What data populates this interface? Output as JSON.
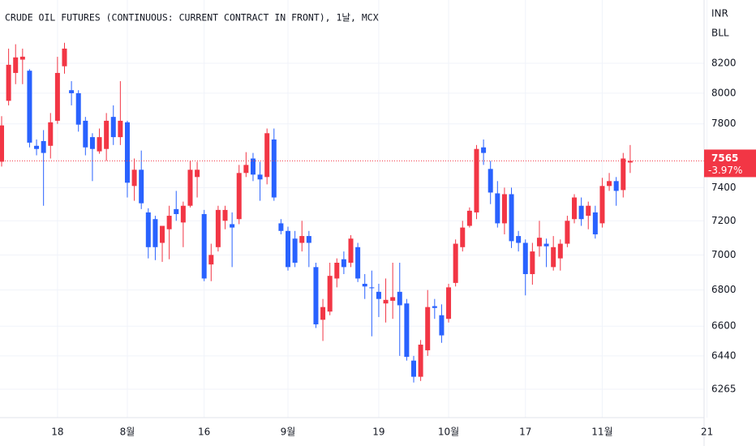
{
  "chart_data": {
    "type": "candlestick",
    "title": "CRUDE OIL FUTURES (CONTINUOUS: CURRENT CONTRACT IN FRONT), 1날, MCX",
    "units": [
      "INR",
      "BLL"
    ],
    "categories": [
      null,
      null,
      null,
      null,
      null,
      null,
      null,
      null,
      "18",
      null,
      null,
      null,
      null,
      null,
      null,
      null,
      null,
      null,
      "8월",
      null,
      null,
      null,
      null,
      null,
      null,
      null,
      null,
      null,
      null,
      "16",
      null,
      null,
      null,
      null,
      null,
      null,
      null,
      null,
      null,
      null,
      null,
      "9월",
      null,
      null,
      null,
      null,
      null,
      null,
      null,
      null,
      null,
      null,
      null,
      null,
      "19",
      null,
      null,
      null,
      null,
      null,
      null,
      null,
      null,
      null,
      "10월",
      null,
      null,
      null,
      null,
      null,
      null,
      null,
      null,
      null,
      null,
      "17",
      null,
      null,
      null,
      null,
      null,
      null,
      null,
      null,
      null,
      null,
      "11월",
      null,
      null,
      null,
      null,
      null,
      null,
      null,
      null,
      null,
      null,
      null,
      null,
      null,
      null,
      "21"
    ],
    "open": [
      7560,
      7950,
      8135,
      8225,
      8150,
      7660,
      7690,
      7660,
      7820,
      8180,
      8020,
      8000,
      7820,
      7715,
      7625,
      7640,
      7845,
      7715,
      7810,
      7410,
      7510,
      7250,
      7210,
      7070,
      7150,
      7270,
      7190,
      7290,
      7465,
      7240,
      6945,
      7045,
      7200,
      7180,
      7210,
      7490,
      7580,
      7480,
      7465,
      7700,
      7185,
      7140,
      7095,
      7070,
      7110,
      6930,
      6635,
      6680,
      6865,
      6975,
      6955,
      7045,
      6835,
      6815,
      6790,
      6725,
      6740,
      6790,
      6725,
      6415,
      6330,
      6470,
      6710,
      6660,
      6640,
      6840,
      7045,
      7170,
      7250,
      7650,
      7515,
      7365,
      7185,
      7360,
      7110,
      7070,
      6890,
      7050,
      7065,
      6930,
      6980,
      7065,
      7210,
      7290,
      7230,
      7250,
      7185,
      7410,
      7440,
      7385,
      7555,
      null,
      null,
      null,
      null,
      null,
      null,
      null,
      null,
      null,
      null,
      null
    ],
    "high": [
      7850,
      8300,
      8330,
      8300,
      8160,
      7700,
      7760,
      7870,
      8244,
      8340,
      8080,
      8020,
      7845,
      7740,
      7770,
      7870,
      7920,
      8080,
      7820,
      7580,
      7630,
      7275,
      7230,
      7150,
      7290,
      7380,
      7315,
      7565,
      7560,
      7265,
      7065,
      7290,
      7290,
      7250,
      7540,
      7620,
      7615,
      7560,
      7770,
      7770,
      7210,
      7165,
      7140,
      7200,
      7140,
      6955,
      6750,
      6955,
      6980,
      7020,
      7115,
      7070,
      6890,
      6910,
      6835,
      6865,
      6955,
      6955,
      6750,
      6440,
      6525,
      6800,
      6750,
      6720,
      6835,
      7090,
      7200,
      7280,
      7665,
      7700,
      7565,
      7440,
      7400,
      7400,
      7140,
      7090,
      7070,
      7200,
      7095,
      7110,
      7090,
      7230,
      7360,
      7340,
      7315,
      7290,
      7460,
      7490,
      7465,
      7615,
      7665,
      null,
      null,
      null,
      null,
      null,
      null,
      null,
      null,
      null,
      null,
      null
    ],
    "low": [
      7530,
      7920,
      8060,
      8060,
      7650,
      7600,
      7290,
      7580,
      7800,
      8130,
      7920,
      7750,
      7600,
      7440,
      7610,
      7565,
      7665,
      7665,
      7340,
      7320,
      7270,
      6980,
      6970,
      6960,
      6975,
      7200,
      7045,
      7280,
      7340,
      6850,
      6850,
      7020,
      7150,
      6930,
      7180,
      7465,
      7440,
      7320,
      7420,
      7320,
      7120,
      6910,
      6930,
      7020,
      6930,
      6590,
      6520,
      6660,
      6815,
      6890,
      6930,
      6845,
      6750,
      6545,
      6650,
      6620,
      6640,
      6440,
      6415,
      6300,
      6308,
      6440,
      6640,
      6510,
      6620,
      6820,
      7020,
      7160,
      7210,
      7540,
      7300,
      7160,
      7120,
      7040,
      7020,
      6770,
      6830,
      6990,
      6930,
      6910,
      6910,
      7045,
      7185,
      7170,
      7150,
      7095,
      7160,
      7380,
      7290,
      7340,
      7490,
      null,
      null,
      null,
      null,
      null,
      null,
      null,
      null,
      null,
      null,
      null
    ],
    "close": [
      7790,
      8190,
      8240,
      8245,
      7680,
      7640,
      7615,
      7810,
      8135,
      8300,
      8000,
      7795,
      7650,
      7640,
      7715,
      7820,
      7715,
      7820,
      7430,
      7510,
      7305,
      7045,
      7045,
      7170,
      7230,
      7240,
      7290,
      7510,
      7510,
      6865,
      7000,
      7265,
      7265,
      7160,
      7490,
      7540,
      7480,
      7450,
      7740,
      7340,
      7140,
      6930,
      6955,
      7110,
      7070,
      6610,
      6705,
      6880,
      6955,
      6930,
      7095,
      6865,
      6820,
      6810,
      6750,
      6745,
      6760,
      6715,
      6435,
      6330,
      6500,
      6705,
      6700,
      6550,
      6815,
      7065,
      7160,
      7260,
      7640,
      7615,
      7370,
      7185,
      7360,
      7080,
      7070,
      6890,
      7020,
      7100,
      7050,
      7045,
      7065,
      7200,
      7340,
      7210,
      7290,
      7120,
      7410,
      7440,
      7380,
      7580,
      7565,
      null,
      null,
      null,
      null,
      null,
      null,
      null,
      null,
      null,
      null,
      null
    ],
    "change_label": "-3.97%",
    "ylim": [
      6120,
      8640
    ],
    "yticks": [
      6265,
      6440,
      6600,
      6800,
      7000,
      7200,
      7400,
      7800,
      8000,
      8200
    ],
    "log_scale": true,
    "grid": true,
    "up_color": "#f23645",
    "down_color": "#2962ff"
  }
}
